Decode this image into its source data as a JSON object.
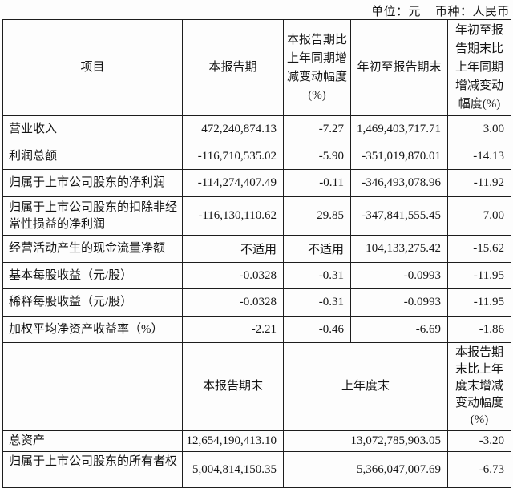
{
  "caption": {
    "unit": "单位：元",
    "currency": "币种：人民币"
  },
  "table": {
    "header1": {
      "item": "项目",
      "current_period": "本报告期",
      "current_period_change": "本报告期比上年同期增减变动幅度(%)",
      "ytd": "年初至报告期末",
      "ytd_change": "年初至报告期末比上年同期增减变动幅度(%)"
    },
    "rows1": [
      {
        "label": "营业收入",
        "current": "472,240,874.13",
        "current_change": "-7.27",
        "ytd": "1,469,403,717.71",
        "ytd_change": "3.00"
      },
      {
        "label": "利润总额",
        "current": "-116,710,535.02",
        "current_change": "-5.90",
        "ytd": "-351,019,870.01",
        "ytd_change": "-14.13"
      },
      {
        "label": "归属于上市公司股东的净利润",
        "current": "-114,274,407.49",
        "current_change": "-0.11",
        "ytd": "-346,493,078.96",
        "ytd_change": "-11.92"
      },
      {
        "label": "归属于上市公司股东的扣除非经常性损益的净利润",
        "current": "-116,130,110.62",
        "current_change": "29.85",
        "ytd": "-347,841,555.45",
        "ytd_change": "7.00"
      },
      {
        "label": "经营活动产生的现金流量净额",
        "current": "不适用",
        "current_change": "不适用",
        "ytd": "104,133,275.42",
        "ytd_change": "-15.62"
      },
      {
        "label": "基本每股收益（元/股）",
        "current": "-0.0328",
        "current_change": "-0.31",
        "ytd": "-0.0993",
        "ytd_change": "-11.95"
      },
      {
        "label": "稀释每股收益（元/股）",
        "current": "-0.0328",
        "current_change": "-0.31",
        "ytd": "-0.0993",
        "ytd_change": "-11.95"
      },
      {
        "label": "加权平均净资产收益率（%）",
        "current": "-2.21",
        "current_change": "-0.46",
        "ytd": "-6.69",
        "ytd_change": "-1.86"
      }
    ],
    "header2": {
      "period_end": "本报告期末",
      "prior_year_end": "上年度末",
      "period_end_change": "本报告期末比上年度末增减变动幅度(%)"
    },
    "rows2": [
      {
        "label": "总资产",
        "period_end": "12,654,190,413.10",
        "prior_year_end": "13,072,785,903.05",
        "change": "-3.20"
      },
      {
        "label": "归属于上市公司股东的所有者权",
        "period_end": "5,004,814,150.35",
        "prior_year_end": "5,366,047,007.69",
        "change": "-6.73"
      }
    ]
  }
}
